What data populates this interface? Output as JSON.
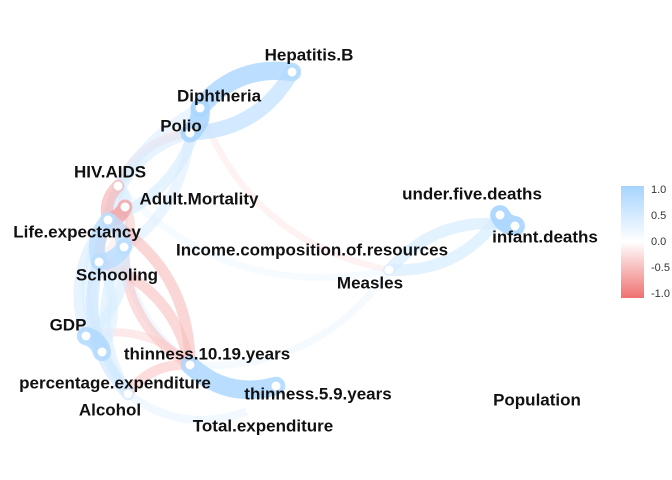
{
  "legend": {
    "ticks": [
      "1.0",
      "0.5",
      "0.0",
      "-0.5",
      "-1.0"
    ],
    "tick_values": [
      1.0,
      0.5,
      0.0,
      -0.5,
      -1.0
    ],
    "colors": {
      "high": "#a6d4ff",
      "mid": "#ffffff",
      "low": "#f07070"
    }
  },
  "nodes": [
    {
      "id": "hepatitis",
      "label": "Hepatitis.B"
    },
    {
      "id": "diphtheria",
      "label": "Diphtheria"
    },
    {
      "id": "polio",
      "label": "Polio"
    },
    {
      "id": "hiv",
      "label": "HIV.AIDS"
    },
    {
      "id": "adult",
      "label": "Adult.Mortality"
    },
    {
      "id": "life",
      "label": "Life.expectancy"
    },
    {
      "id": "income",
      "label": "Income.composition.of.resources"
    },
    {
      "id": "schooling",
      "label": "Schooling"
    },
    {
      "id": "measles",
      "label": "Measles"
    },
    {
      "id": "under5",
      "label": "under.five.deaths"
    },
    {
      "id": "infant",
      "label": "infant.deaths"
    },
    {
      "id": "gdp",
      "label": "GDP"
    },
    {
      "id": "thin1019",
      "label": "thinness.10.19.years"
    },
    {
      "id": "pctexp",
      "label": "percentage.expenditure"
    },
    {
      "id": "thin59",
      "label": "thinness.5.9.years"
    },
    {
      "id": "alcohol",
      "label": "Alcohol"
    },
    {
      "id": "totalexp",
      "label": "Total.expenditure"
    },
    {
      "id": "population",
      "label": "Population"
    }
  ],
  "edges": [
    {
      "from": "diphtheria",
      "to": "polio",
      "r": 0.95
    },
    {
      "from": "hepatitis",
      "to": "diphtheria",
      "r": 0.9
    },
    {
      "from": "hepatitis",
      "to": "polio",
      "r": 0.7
    },
    {
      "from": "under5",
      "to": "infant",
      "r": 0.99
    },
    {
      "from": "infant",
      "to": "measles",
      "r": 0.5
    },
    {
      "from": "under5",
      "to": "measles",
      "r": 0.5
    },
    {
      "from": "life",
      "to": "adult",
      "r": -0.7
    },
    {
      "from": "life",
      "to": "hiv",
      "r": -0.55
    },
    {
      "from": "life",
      "to": "schooling",
      "r": 0.75
    },
    {
      "from": "life",
      "to": "income",
      "r": 0.72
    },
    {
      "from": "income",
      "to": "schooling",
      "r": 0.8
    },
    {
      "from": "adult",
      "to": "hiv",
      "r": 0.5
    },
    {
      "from": "life",
      "to": "polio",
      "r": 0.45
    },
    {
      "from": "life",
      "to": "diphtheria",
      "r": 0.47
    },
    {
      "from": "schooling",
      "to": "polio",
      "r": 0.42
    },
    {
      "from": "schooling",
      "to": "diphtheria",
      "r": 0.42
    },
    {
      "from": "adult",
      "to": "schooling",
      "r": -0.44
    },
    {
      "from": "hiv",
      "to": "polio",
      "r": -0.35
    },
    {
      "from": "schooling",
      "to": "alcohol",
      "r": 0.55
    },
    {
      "from": "life",
      "to": "gdp",
      "r": 0.45
    },
    {
      "from": "gdp",
      "to": "pctexp",
      "r": 0.9
    },
    {
      "from": "schooling",
      "to": "pctexp",
      "r": 0.4
    },
    {
      "from": "life",
      "to": "thin1019",
      "r": -0.47
    },
    {
      "from": "schooling",
      "to": "thin1019",
      "r": -0.45
    },
    {
      "from": "adult",
      "to": "thin1019",
      "r": 0.3
    },
    {
      "from": "thin1019",
      "to": "thin59",
      "r": 0.92
    },
    {
      "from": "gdp",
      "to": "thin1019",
      "r": -0.3
    },
    {
      "from": "income",
      "to": "thin1019",
      "r": -0.42
    },
    {
      "from": "alcohol",
      "to": "thin1019",
      "r": -0.42
    },
    {
      "from": "measles",
      "to": "thin1019",
      "r": 0.25
    },
    {
      "from": "hiv",
      "to": "measles",
      "r": 0.22
    },
    {
      "from": "diphtheria",
      "to": "measles",
      "r": -0.2
    },
    {
      "from": "gdp",
      "to": "income",
      "r": 0.45
    },
    {
      "from": "alcohol",
      "to": "income",
      "r": 0.45
    },
    {
      "from": "life",
      "to": "alcohol",
      "r": 0.4
    },
    {
      "from": "life",
      "to": "pctexp",
      "r": 0.38
    },
    {
      "from": "alcohol",
      "to": "totalexp",
      "r": 0.3
    },
    {
      "from": "adult",
      "to": "income",
      "r": -0.4
    },
    {
      "from": "hiv",
      "to": "schooling",
      "r": -0.2
    }
  ]
}
